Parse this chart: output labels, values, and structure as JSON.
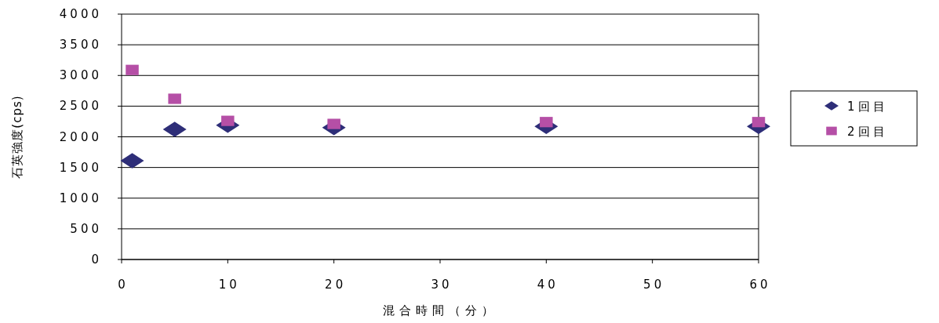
{
  "chart_data": {
    "type": "scatter",
    "xlabel": "混合時間（分）",
    "ylabel": "石英強度(cps)",
    "xlim": [
      0,
      60
    ],
    "xticks": [
      0,
      10,
      20,
      30,
      40,
      50,
      60
    ],
    "ylim": [
      0,
      4000
    ],
    "yticks": [
      0,
      500,
      1000,
      1500,
      2000,
      2500,
      3000,
      3500,
      4000
    ],
    "grid": "y",
    "legend": "right",
    "series": [
      {
        "name": "1回目",
        "color": "#2e2e78",
        "marker": "diamond",
        "x": [
          1,
          5,
          10,
          20,
          40,
          60
        ],
        "values": [
          1610,
          2120,
          2190,
          2150,
          2170,
          2170
        ]
      },
      {
        "name": "2回目",
        "color": "#b54fa6",
        "marker": "square",
        "x": [
          1,
          5,
          10,
          20,
          40,
          60
        ],
        "values": [
          3090,
          2620,
          2260,
          2210,
          2240,
          2240
        ]
      }
    ]
  }
}
